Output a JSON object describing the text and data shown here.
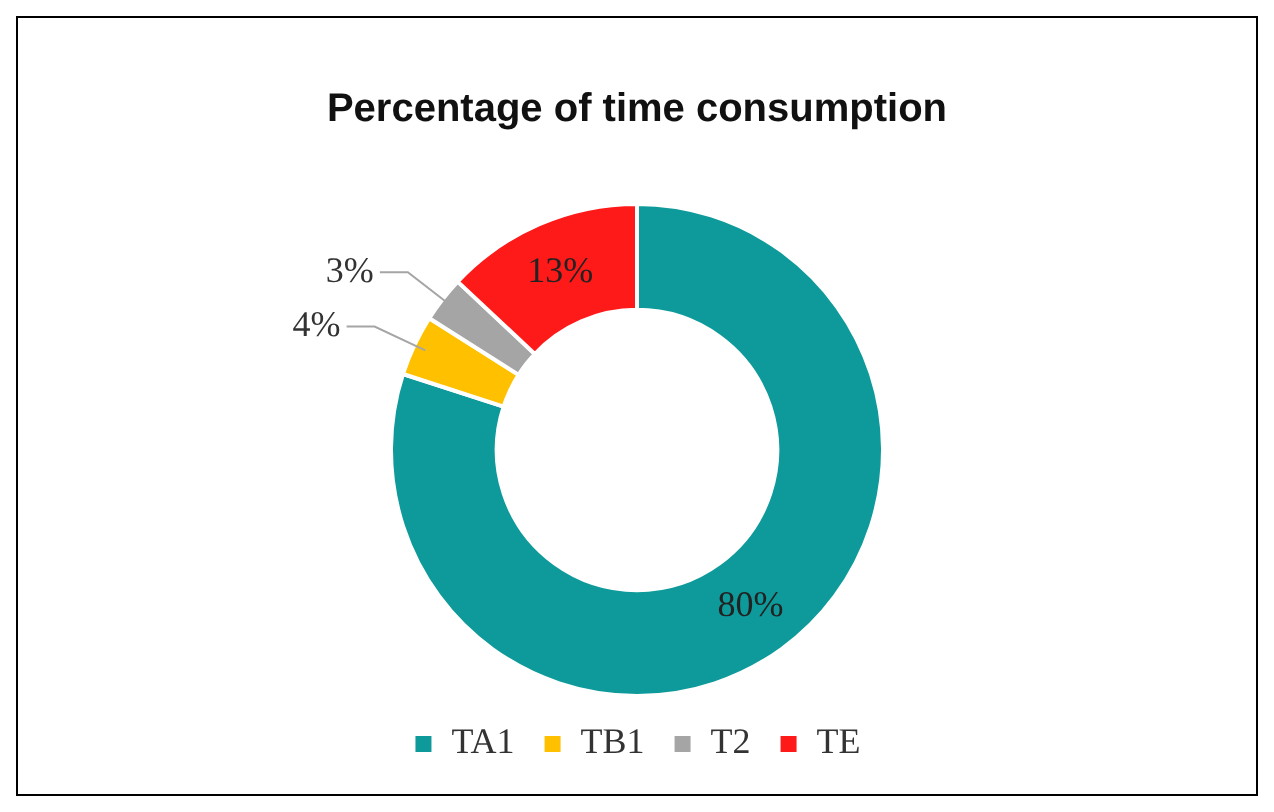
{
  "chart_data": {
    "type": "donut",
    "title": "Percentage of time consumption",
    "categories": [
      "TA1",
      "TB1",
      "T2",
      "TE"
    ],
    "values": [
      80,
      4,
      3,
      13
    ],
    "colors": [
      "#0e9a9a",
      "#ffc000",
      "#a5a5a5",
      "#ff1a1a"
    ],
    "value_labels": [
      "80%",
      "4%",
      "3%",
      "13%"
    ],
    "legend": "bottom"
  }
}
